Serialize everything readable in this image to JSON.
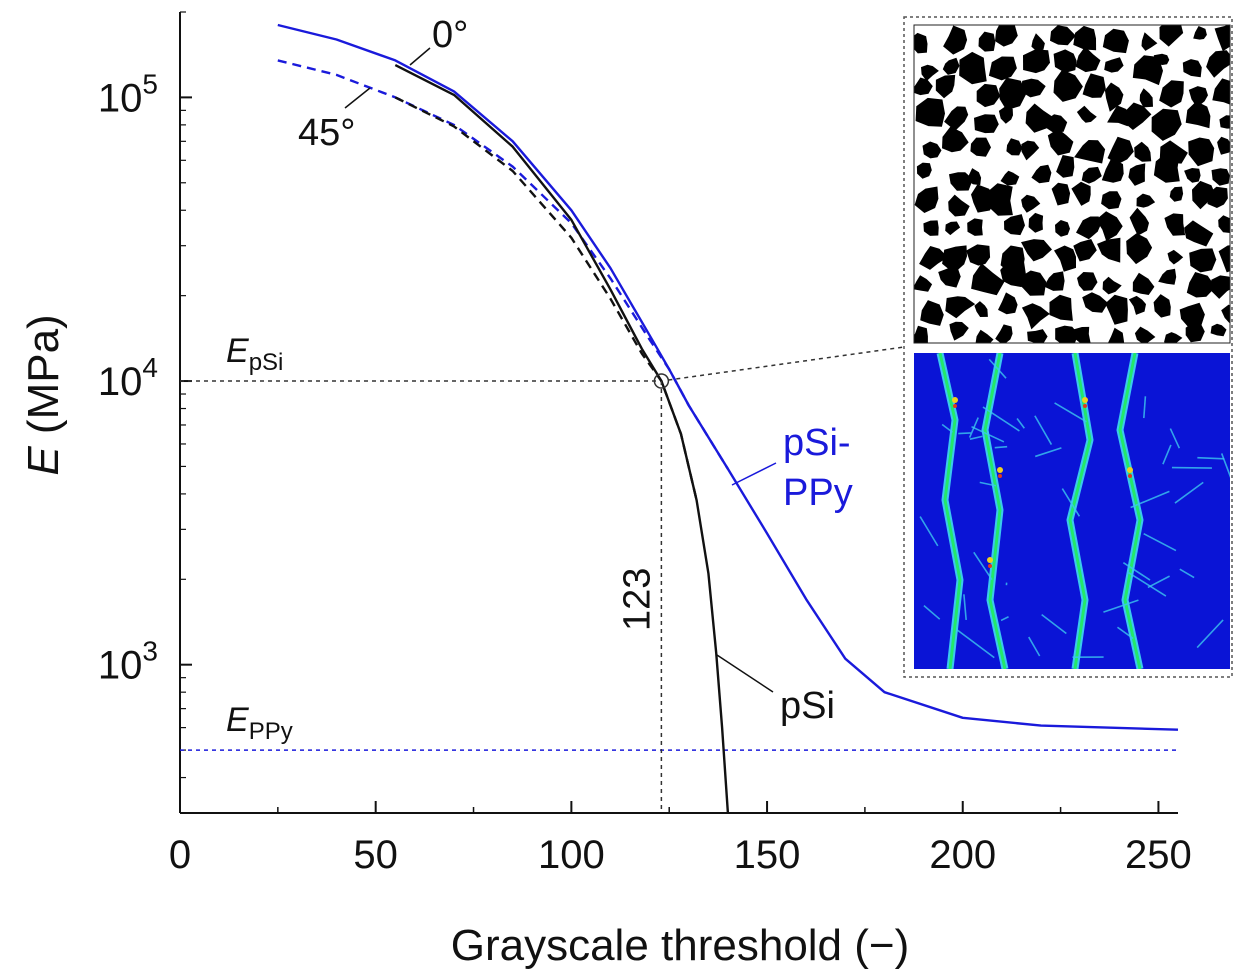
{
  "chart_data": {
    "type": "line",
    "xlabel": "Grayscale threshold (−)",
    "ylabel_symbol": "E",
    "ylabel_unit": " (MPa)",
    "xlim": [
      0,
      255
    ],
    "ylim": [
      300,
      200000
    ],
    "yscale": "log",
    "x_ticks": [
      0,
      50,
      100,
      150,
      200,
      250
    ],
    "y_ticks": [
      {
        "value": 1000,
        "base": "10",
        "exp": "3"
      },
      {
        "value": 10000,
        "base": "10",
        "exp": "4"
      },
      {
        "value": 100000,
        "base": "10",
        "exp": "5"
      }
    ],
    "series": [
      {
        "label": "pSi-PPy 0°",
        "color": "#1a1adb",
        "dash": "solid",
        "x": [
          25,
          40,
          55,
          70,
          85,
          100,
          110,
          120,
          125,
          130,
          140,
          150,
          160,
          170,
          180,
          200,
          220,
          255
        ],
        "y": [
          180000,
          160000,
          135000,
          105000,
          70000,
          40000,
          25000,
          14500,
          11000,
          8200,
          4900,
          2900,
          1700,
          1050,
          800,
          650,
          610,
          590
        ]
      },
      {
        "label": "pSi-PPy 45°",
        "color": "#1a1adb",
        "dash": "dashed",
        "x": [
          25,
          40,
          55,
          70,
          85,
          100,
          110,
          120,
          125,
          130,
          140
        ],
        "y": [
          135000,
          120000,
          100000,
          80000,
          57000,
          36000,
          23000,
          14000,
          11000,
          8200,
          4900
        ]
      },
      {
        "label": "pSi 0°",
        "color": "#111111",
        "dash": "solid",
        "x": [
          55,
          70,
          85,
          100,
          110,
          118,
          123,
          128,
          132,
          135,
          137,
          138.5,
          140
        ],
        "y": [
          130000,
          102000,
          67000,
          37000,
          21000,
          13000,
          10000,
          6500,
          3800,
          2100,
          1100,
          600,
          300
        ]
      },
      {
        "label": "pSi 45°",
        "color": "#111111",
        "dash": "dashed",
        "x": [
          55,
          70,
          85,
          100,
          110,
          118,
          123,
          128,
          132
        ],
        "y": [
          100000,
          79000,
          55000,
          32000,
          19500,
          12500,
          10000,
          6500,
          3800
        ]
      }
    ],
    "reference_lines": [
      {
        "label_symbol": "E",
        "label_sub": "pSi",
        "y": 10000,
        "color": "#333333"
      },
      {
        "label_symbol": "E",
        "label_sub": "PPy",
        "y": 500,
        "color": "#1a1adb"
      }
    ],
    "marker_point": {
      "x": 123,
      "y": 10000,
      "label": "123"
    },
    "annotations": {
      "deg0": "0°",
      "deg45": "45°",
      "psi_ppy_line1": "pSi-",
      "psi_ppy_line2": "PPy",
      "psi": "pSi"
    },
    "insets": [
      {
        "kind": "binary-microstructure",
        "colors": [
          "#000000",
          "#ffffff"
        ]
      },
      {
        "kind": "stress-field",
        "colors": [
          "#0a14d6",
          "#3cc8f0",
          "#22e86a",
          "#f0d020",
          "#e03a1e"
        ]
      }
    ]
  }
}
